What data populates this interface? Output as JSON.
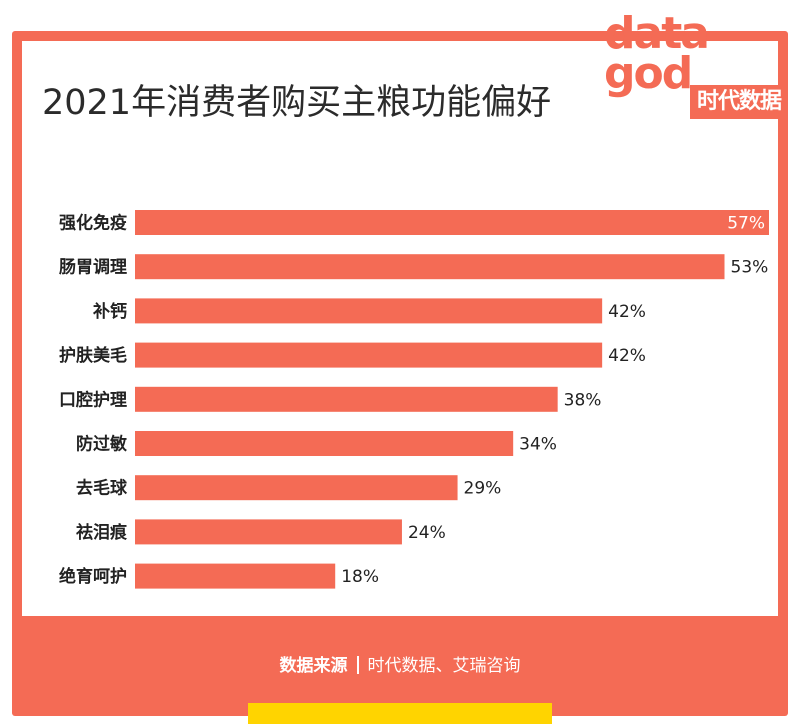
{
  "title": "2021年消费者购买主粮功能偏好",
  "logo": {
    "word_line1": "data",
    "word_line2": "god",
    "cn": "时代数据"
  },
  "footer": {
    "source_label": "数据来源",
    "source_value": "时代数据、艾瑞咨询"
  },
  "colors": {
    "accent": "#f46b55",
    "bar": "#f46b55",
    "text": "#222222",
    "highlight": "#ffd400"
  },
  "chart_data": {
    "type": "bar",
    "orientation": "horizontal",
    "categories": [
      "强化免疫",
      "肠胃调理",
      "补钙",
      "护肤美毛",
      "口腔护理",
      "防过敏",
      "去毛球",
      "祛泪痕",
      "绝育呵护"
    ],
    "values": [
      57,
      53,
      42,
      42,
      38,
      34,
      29,
      24,
      18
    ],
    "labels": [
      "57%",
      "53%",
      "42%",
      "42%",
      "38%",
      "34%",
      "29%",
      "24%",
      "18%"
    ],
    "unit": "%",
    "xlim": [
      0,
      57
    ],
    "grid": false,
    "legend": "none"
  }
}
